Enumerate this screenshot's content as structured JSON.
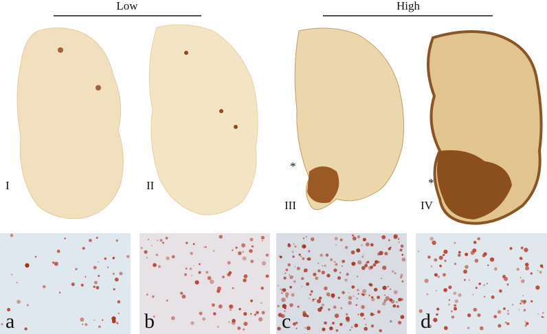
{
  "header": {
    "groups": [
      {
        "label": "Low"
      },
      {
        "label": "High"
      }
    ]
  },
  "sections": [
    {
      "label": "I"
    },
    {
      "label": "II"
    },
    {
      "label": "III",
      "marker": "*"
    },
    {
      "label": "IV",
      "marker": "*"
    }
  ],
  "panels": [
    {
      "label": "a"
    },
    {
      "label": "b"
    },
    {
      "label": "c"
    },
    {
      "label": "d"
    }
  ]
}
